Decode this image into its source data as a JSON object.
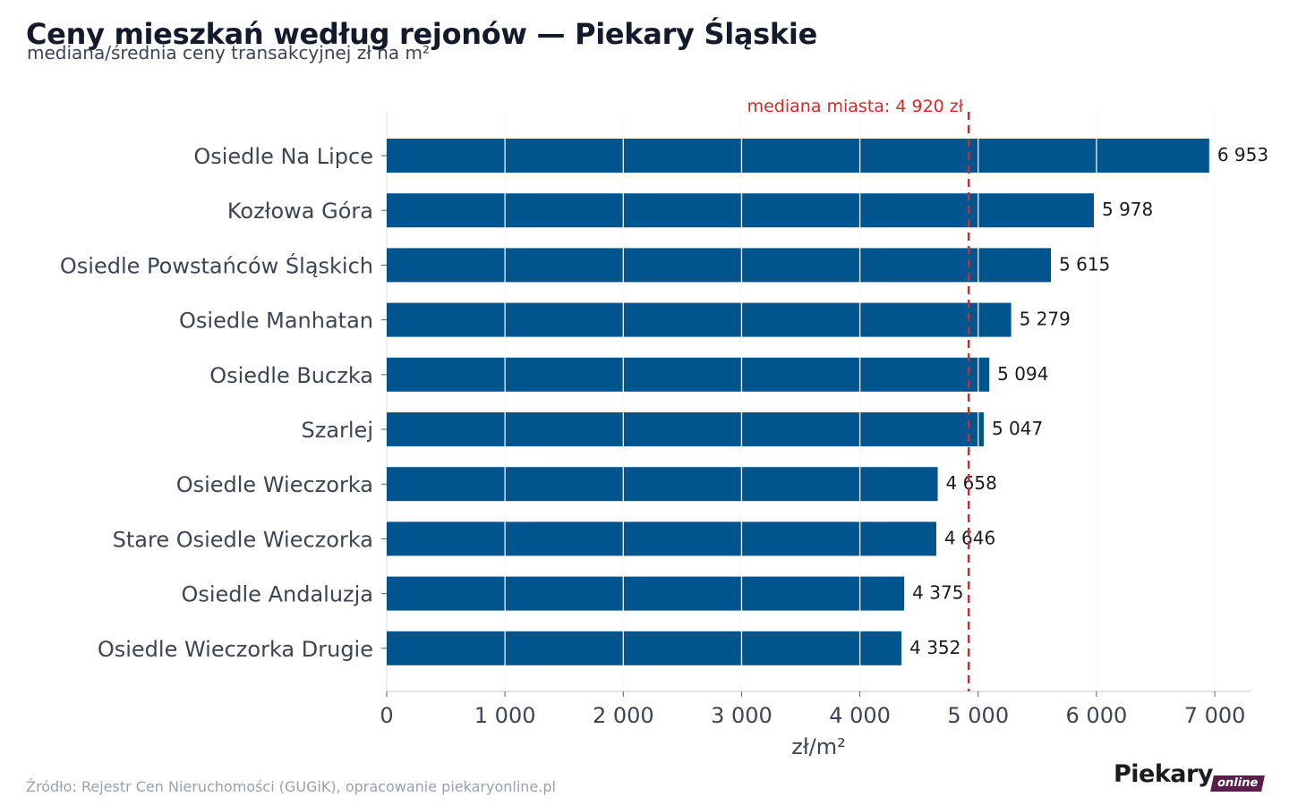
{
  "title": "Ceny mieszkań według rejonów — Piekary Śląskie",
  "subtitle": "mediana/średnia ceny transakcyjnej zł na m²",
  "source": "Źródło: Rejestr Cen Nieruchomości (GUGiK), opracowanie piekaryonline.pl",
  "logo": {
    "main": "Piekary",
    "tag": "online"
  },
  "colors": {
    "bar": "#00558f",
    "median_line": "#d9262b",
    "grid": "#e3e3e3",
    "label": "#3d4452"
  },
  "chart_data": {
    "type": "bar",
    "orientation": "horizontal",
    "categories": [
      "Osiedle Na Lipce",
      "Kozłowa Góra",
      "Osiedle Powstańców Śląskich",
      "Osiedle Manhatan",
      "Osiedle Buczka",
      "Szarlej",
      "Osiedle Wieczorka",
      "Stare Osiedle Wieczorka",
      "Osiedle Andaluzja",
      "Osiedle Wieczorka Drugie"
    ],
    "values": [
      6953,
      5978,
      5615,
      5279,
      5094,
      5047,
      4658,
      4646,
      4375,
      4352
    ],
    "value_labels": [
      "6 953",
      "5 978",
      "5 615",
      "5 279",
      "5 094",
      "5 047",
      "4 658",
      "4 646",
      "4 375",
      "4 352"
    ],
    "xlabel": "zł/m²",
    "xlim": [
      0,
      7300
    ],
    "xticks": [
      0,
      1000,
      2000,
      3000,
      4000,
      5000,
      6000,
      7000
    ],
    "xtick_labels": [
      "0",
      "1 000",
      "2 000",
      "3 000",
      "4 000",
      "5 000",
      "6 000",
      "7 000"
    ],
    "grid": "vertical",
    "reference_line": {
      "value": 4920,
      "label": "mediana miasta: 4 920 zł",
      "style": "dashed"
    }
  }
}
